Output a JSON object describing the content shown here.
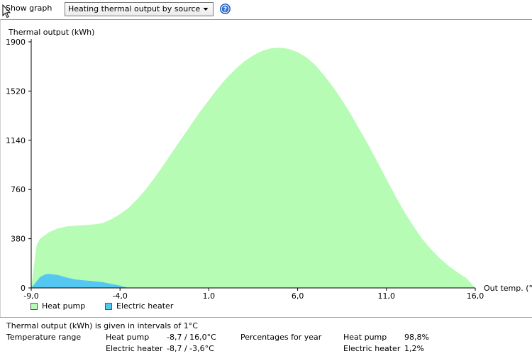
{
  "toolbar": {
    "label": "Show graph",
    "selected_graph": "Heating thermal output by source"
  },
  "icons": {
    "cursor": "arrow-cursor-icon",
    "dropdown": "chevron-down-icon",
    "help": "help-icon"
  },
  "colors": {
    "heat_pump": "#b6fcb4",
    "electric_heater": "#55c8f2",
    "help_blue": "#2a6fd6"
  },
  "chart_data": {
    "type": "area",
    "ylabel": "Thermal output (kWh)",
    "xlabel": "Out temp. (°C)",
    "xlim": [
      -9,
      16
    ],
    "ylim": [
      0,
      1900
    ],
    "x_ticks": [
      "-9,0",
      "-4,0",
      "1,0",
      "6,0",
      "11,0",
      "16,0"
    ],
    "y_ticks": [
      "0",
      "380",
      "760",
      "1140",
      "1520",
      "1900"
    ],
    "x_tick_values": [
      -9,
      -4,
      1,
      6,
      11,
      16
    ],
    "y_tick_values": [
      0,
      380,
      760,
      1140,
      1520,
      1900
    ],
    "legend_position": "bottom-left",
    "series": [
      {
        "name": "Heat pump",
        "x": [
          -9,
          -8.7,
          -8.5,
          -8,
          -7.5,
          -7,
          -6.5,
          -6,
          -5.5,
          -5,
          -4.5,
          -4,
          -3.5,
          -3,
          -2.5,
          -2,
          -1.5,
          -1,
          -0.5,
          0,
          0.5,
          1,
          1.5,
          2,
          2.5,
          3,
          3.5,
          4,
          4.5,
          5,
          5.5,
          6,
          6.5,
          7,
          7.5,
          8,
          8.5,
          9,
          9.5,
          10,
          10.5,
          11,
          11.5,
          12,
          12.5,
          13,
          13.5,
          14,
          14.5,
          15,
          15.5,
          16
        ],
        "values": [
          0,
          330,
          380,
          430,
          460,
          475,
          480,
          485,
          490,
          500,
          530,
          570,
          620,
          690,
          770,
          860,
          960,
          1060,
          1160,
          1260,
          1360,
          1450,
          1540,
          1620,
          1690,
          1750,
          1795,
          1830,
          1850,
          1855,
          1845,
          1820,
          1780,
          1720,
          1640,
          1550,
          1450,
          1340,
          1220,
          1100,
          970,
          840,
          710,
          590,
          480,
          380,
          300,
          230,
          170,
          120,
          75,
          0
        ]
      },
      {
        "name": "Electric heater",
        "x": [
          -9,
          -8.7,
          -8.5,
          -8.2,
          -8,
          -7.5,
          -7,
          -6.5,
          -6,
          -5.5,
          -5,
          -4.5,
          -4,
          -3.8,
          -3.6,
          -3.5
        ],
        "values": [
          0,
          50,
          85,
          105,
          108,
          100,
          80,
          65,
          58,
          52,
          45,
          32,
          18,
          10,
          3,
          0
        ]
      }
    ]
  },
  "footer": {
    "note": "Thermal output (kWh) is given in intervals of 1°C",
    "temp_range_label": "Temperature range",
    "percentages_label": "Percentages for year",
    "heat_pump_label": "Heat pump",
    "electric_heater_label": "Electric heater",
    "hp_range": "-8,7 / 16,0°C",
    "eh_range": "-8,7 / -3,6°C",
    "hp_pct": "98,8%",
    "eh_pct": "1,2%"
  }
}
